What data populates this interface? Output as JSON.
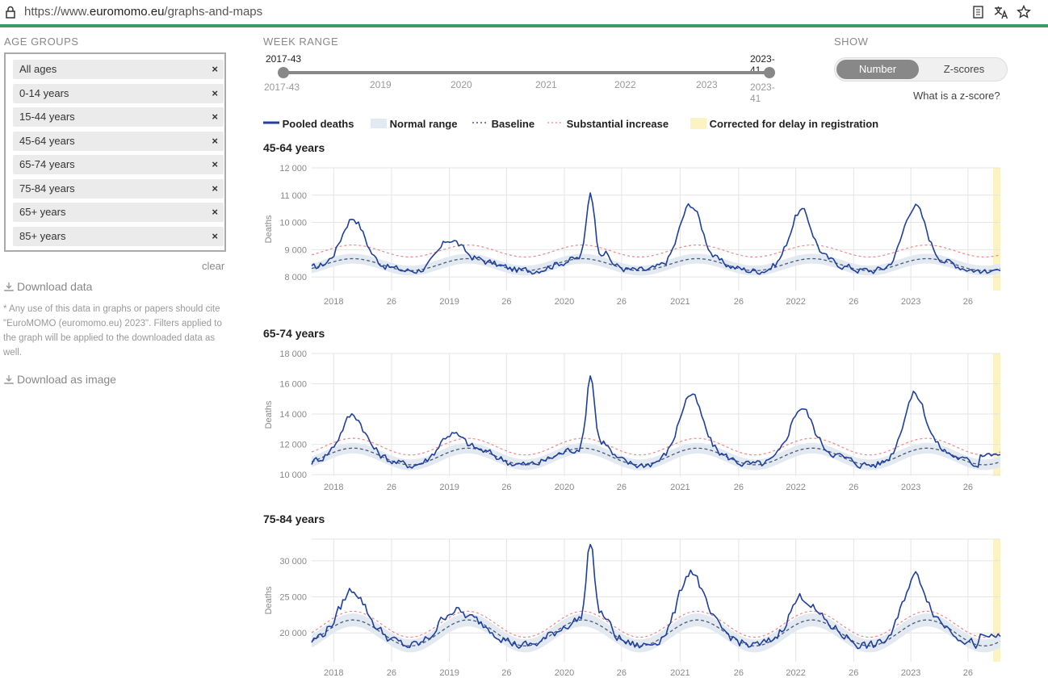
{
  "browser": {
    "url_prefix": "https://www.",
    "url_domain": "euromomo.eu",
    "url_path": "/graphs-and-maps"
  },
  "sidebar": {
    "label": "AGE GROUPS",
    "groups": [
      "All ages",
      "0-14 years",
      "15-44 years",
      "45-64 years",
      "65-74 years",
      "75-84 years",
      "65+ years",
      "85+ years"
    ],
    "remove_glyph": "×",
    "clear_label": "clear",
    "download_data": "Download data",
    "note": "* Any use of this data in graphs or papers should cite \"EuroMOMO (euromomo.eu) 2023\". Filters applied to the graph will be applied to the downloaded data as well.",
    "download_image": "Download as image"
  },
  "week_range": {
    "label": "WEEK RANGE",
    "start": "2017-43",
    "end": "2023-41",
    "ticks": [
      "2017-43",
      "2019",
      "2020",
      "2021",
      "2022",
      "2023",
      "2023-41"
    ]
  },
  "show": {
    "label": "SHOW",
    "options": [
      "Number",
      "Z-scores"
    ],
    "selected": "Number",
    "zscore_link": "What is a z-score?"
  },
  "legend": {
    "pooled": "Pooled deaths",
    "normal": "Normal range",
    "baseline": "Baseline",
    "substantial": "Substantial increase",
    "corrected": "Corrected for delay in registration"
  },
  "colors": {
    "pooled": "#1f3f9e",
    "normal": "#e3e9f1",
    "baseline": "#4a5a75",
    "substantial": "#f08585",
    "corrected": "#fbf4c2",
    "accent": "#3d9a62"
  },
  "chart_data": [
    {
      "type": "line",
      "title": "45-64 years",
      "ylabel": "Deaths",
      "ylim": [
        7500,
        12000
      ],
      "yticks": [
        "8 000",
        "9 000",
        "10 000",
        "11 000",
        "12 000"
      ],
      "ytick_values": [
        8000,
        9000,
        10000,
        11000,
        12000
      ],
      "xtick_labels": [
        "2018",
        "26",
        "2019",
        "26",
        "2020",
        "26",
        "2021",
        "26",
        "2022",
        "26",
        "2023",
        "26"
      ],
      "baseline_mean": 8450,
      "baseline_amp": 220,
      "band": 180,
      "substantial_offset": 500,
      "peaks": [
        [
          0.06,
          1500
        ],
        [
          0.2,
          800
        ],
        [
          0.405,
          2500
        ],
        [
          0.55,
          2000
        ],
        [
          0.71,
          1800
        ],
        [
          0.875,
          2000
        ]
      ],
      "pooled_end": 8200
    },
    {
      "type": "line",
      "title": "65-74 years",
      "ylabel": "Deaths",
      "ylim": [
        9900,
        18000
      ],
      "yticks": [
        "10 000",
        "12 000",
        "14 000",
        "16 000",
        "18 000"
      ],
      "ytick_values": [
        10000,
        12000,
        14000,
        16000,
        18000
      ],
      "xtick_labels": [
        "2018",
        "26",
        "2019",
        "26",
        "2020",
        "26",
        "2021",
        "26",
        "2022",
        "26",
        "2023",
        "26"
      ],
      "baseline_mean": 11200,
      "baseline_amp": 550,
      "band": 350,
      "substantial_offset": 650,
      "peaks": [
        [
          0.06,
          2200
        ],
        [
          0.2,
          1200
        ],
        [
          0.405,
          5000
        ],
        [
          0.55,
          3600
        ],
        [
          0.71,
          2800
        ],
        [
          0.875,
          3700
        ]
      ],
      "pooled_end": 11300
    },
    {
      "type": "line",
      "title": "75-84 years",
      "ylabel": "Deaths",
      "ylim": [
        16000,
        33000
      ],
      "yticks": [
        "20 000",
        "25 000",
        "30 000"
      ],
      "ytick_values": [
        20000,
        25000,
        30000
      ],
      "xtick_labels": [
        "2018",
        "26",
        "2019",
        "26",
        "2020",
        "26",
        "2021",
        "26",
        "2022",
        "26",
        "2023",
        "26"
      ],
      "baseline_mean": 20000,
      "baseline_amp": 1800,
      "band": 900,
      "substantial_offset": 1200,
      "peaks": [
        [
          0.06,
          4200
        ],
        [
          0.2,
          2000
        ],
        [
          0.405,
          11000
        ],
        [
          0.55,
          7000
        ],
        [
          0.71,
          3500
        ],
        [
          0.875,
          6500
        ]
      ],
      "pooled_end": 19500
    }
  ]
}
